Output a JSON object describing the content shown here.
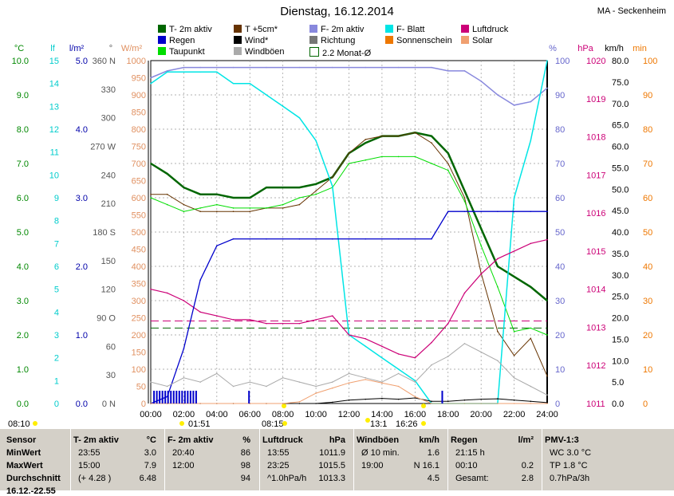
{
  "header": {
    "title": "Dienstag, 16.12.2014",
    "station": "MA - Seckenheim"
  },
  "legend": [
    {
      "label": "T- 2m aktiv",
      "color": "#006600"
    },
    {
      "label": "T +5cm*",
      "color": "#663300"
    },
    {
      "label": "F- 2m aktiv",
      "color": "#8888dd"
    },
    {
      "label": "F- Blatt",
      "color": "#00e5e5"
    },
    {
      "label": "Luftdruck",
      "color": "#cc0077"
    },
    {
      "label": "Regen",
      "color": "#0000cc"
    },
    {
      "label": "Wind*",
      "color": "#000000"
    },
    {
      "label": "Richtung",
      "color": "#777777"
    },
    {
      "label": "Sonnenschein",
      "color": "#ee7700"
    },
    {
      "label": "Solar",
      "color": "#f0a070"
    },
    {
      "label": "Taupunkt",
      "color": "#00dd00"
    },
    {
      "label": "Windböen",
      "color": "#aaaaaa"
    },
    {
      "label": "2.2 Monat-Ø",
      "color": "#006600"
    }
  ],
  "axes": {
    "temp": {
      "unit": "°C",
      "color": "#008800",
      "ticks": [
        "10.0",
        "9.0",
        "8.0",
        "7.0",
        "6.0",
        "5.0",
        "4.0",
        "3.0",
        "2.0",
        "1.0",
        "0.0"
      ]
    },
    "lf": {
      "unit": "lf",
      "color": "#00cccc",
      "ticks": [
        "15",
        "14",
        "13",
        "12",
        "11",
        "10",
        "9",
        "8",
        "7",
        "6",
        "5",
        "4",
        "3",
        "2",
        "1",
        "0"
      ]
    },
    "rain": {
      "unit": "l/m²",
      "color": "#0000aa",
      "ticks": [
        "5.0",
        "4.0",
        "3.0",
        "2.0",
        "1.0",
        "0.0"
      ]
    },
    "dir": {
      "unit": "°",
      "color": "#555555",
      "ticks": [
        "360 N",
        "330",
        "300",
        "270 W",
        "240",
        "210",
        "180 S",
        "150",
        "120",
        "90 O",
        "60",
        "30",
        "0 N"
      ]
    },
    "solar": {
      "unit": "W/m²",
      "color": "#e09060",
      "ticks": [
        "1000",
        "950",
        "900",
        "850",
        "800",
        "750",
        "700",
        "650",
        "600",
        "550",
        "500",
        "450",
        "400",
        "350",
        "300",
        "250",
        "200",
        "150",
        "100",
        "50",
        "0"
      ]
    },
    "hum": {
      "unit": "%",
      "color": "#6666cc",
      "ticks": [
        "100",
        "90",
        "80",
        "70",
        "60",
        "50",
        "40",
        "30",
        "20",
        "10",
        "0"
      ]
    },
    "press": {
      "unit": "hPa",
      "color": "#cc0077",
      "ticks": [
        "1020",
        "1019",
        "1018",
        "1017",
        "1016",
        "1015",
        "1014",
        "1013",
        "1012",
        "1011"
      ]
    },
    "wind": {
      "unit": "km/h",
      "color": "#000000",
      "ticks": [
        "80.0",
        "75.0",
        "70.0",
        "65.0",
        "60.0",
        "55.0",
        "50.0",
        "45.0",
        "40.0",
        "35.0",
        "30.0",
        "25.0",
        "20.0",
        "15.0",
        "10.0",
        "5.0",
        "0.0"
      ]
    },
    "min": {
      "unit": "min",
      "color": "#ee7700",
      "ticks": [
        "100",
        "90",
        "80",
        "70",
        "60",
        "50",
        "40",
        "30",
        "20",
        "10",
        "0"
      ]
    }
  },
  "xaxis": {
    "ticks": [
      "00:00",
      "02:00",
      "04:00",
      "06:00",
      "08:00",
      "10:00",
      "12:00",
      "14:00",
      "16:00",
      "18:00",
      "20:00",
      "22:00",
      "24:00"
    ],
    "markers": [
      "08:10",
      "01:51",
      "08:15",
      "13:1",
      "16:26"
    ]
  },
  "chart_data": {
    "type": "line",
    "title": "Dienstag, 16.12.2014",
    "x_hours": [
      0,
      1,
      2,
      3,
      4,
      5,
      6,
      7,
      8,
      9,
      10,
      11,
      12,
      13,
      14,
      15,
      16,
      17,
      18,
      19,
      20,
      21,
      22,
      23,
      24
    ],
    "series": [
      {
        "name": "T- 2m aktiv",
        "unit": "°C",
        "values": [
          7.0,
          6.7,
          6.3,
          6.1,
          6.1,
          6.0,
          6.0,
          6.3,
          6.3,
          6.3,
          6.4,
          6.6,
          7.3,
          7.6,
          7.8,
          7.8,
          7.9,
          7.8,
          7.3,
          6.2,
          5.1,
          4.0,
          3.7,
          3.4,
          3.0
        ]
      },
      {
        "name": "T +5cm*",
        "unit": "°C",
        "values": [
          6.1,
          6.1,
          5.8,
          5.6,
          5.6,
          5.6,
          5.6,
          5.7,
          5.7,
          5.8,
          6.2,
          6.6,
          7.3,
          7.7,
          7.8,
          7.8,
          7.9,
          7.6,
          7.0,
          6.0,
          3.8,
          2.1,
          1.4,
          1.9,
          0.8
        ]
      },
      {
        "name": "Taupunkt",
        "unit": "°C",
        "values": [
          6.0,
          5.8,
          5.6,
          5.7,
          5.8,
          5.7,
          5.7,
          5.7,
          5.8,
          6.0,
          6.1,
          6.3,
          7.0,
          7.1,
          7.2,
          7.2,
          7.2,
          7.0,
          6.8,
          5.9,
          4.6,
          3.4,
          2.1,
          2.2,
          2.0
        ]
      },
      {
        "name": "F- 2m aktiv",
        "unit": "%",
        "values": [
          95,
          97,
          98,
          98,
          98,
          98,
          98,
          98,
          98,
          98,
          98,
          98,
          98,
          98,
          98,
          98,
          98,
          98,
          97,
          97,
          94,
          90,
          87,
          88,
          92
        ]
      },
      {
        "name": "F- Blatt",
        "unit": "lf",
        "values": [
          14.0,
          14.5,
          14.5,
          14.5,
          14.5,
          14.0,
          14.0,
          13.5,
          13.0,
          12.5,
          11.5,
          9.5,
          3.0,
          2.5,
          2.0,
          1.5,
          1.0,
          0.0,
          0.0,
          0.0,
          0.0,
          0.0,
          9.0,
          11.5,
          15.0
        ]
      },
      {
        "name": "Luftdruck",
        "unit": "hPa",
        "values": [
          1014.0,
          1013.9,
          1013.7,
          1013.4,
          1013.3,
          1013.2,
          1013.2,
          1013.1,
          1013.1,
          1013.1,
          1013.2,
          1013.3,
          1012.8,
          1012.7,
          1012.5,
          1012.3,
          1012.2,
          1012.6,
          1013.1,
          1013.9,
          1014.4,
          1014.8,
          1015.0,
          1015.2,
          1015.3
        ]
      },
      {
        "name": "Regen",
        "unit": "l/m²",
        "values": [
          0.0,
          0.1,
          0.8,
          1.8,
          2.3,
          2.4,
          2.4,
          2.4,
          2.4,
          2.4,
          2.4,
          2.4,
          2.4,
          2.4,
          2.4,
          2.4,
          2.4,
          2.4,
          2.8,
          2.8,
          2.8,
          2.8,
          2.8,
          2.8,
          2.8
        ]
      },
      {
        "name": "Windböen",
        "unit": "km/h",
        "values": [
          5,
          4,
          6,
          5,
          7,
          4,
          5,
          4,
          6,
          5,
          4,
          5,
          7,
          6,
          5,
          7,
          5,
          9,
          11,
          14,
          12,
          10,
          6,
          4,
          2
        ]
      },
      {
        "name": "Wind*",
        "unit": "km/h",
        "values": [
          0,
          0,
          0,
          0,
          0,
          0,
          0,
          0,
          0,
          0,
          0,
          0.3,
          0.8,
          1.0,
          1.2,
          1.0,
          1.3,
          0.5,
          0.5,
          0.8,
          1.0,
          1.1,
          0.8,
          0.5,
          0.2
        ]
      },
      {
        "name": "Solar",
        "unit": "W/m²",
        "values": [
          0,
          0,
          0,
          0,
          0,
          0,
          0,
          0,
          0,
          5,
          30,
          45,
          60,
          70,
          60,
          50,
          20,
          0,
          0,
          0,
          0,
          0,
          0,
          0,
          0
        ]
      }
    ],
    "reference_lines": [
      {
        "name": "2.2 Monat-Ø",
        "unit": "°C",
        "value": 2.2
      },
      {
        "name": "Luftdruck Ø",
        "unit": "hPa",
        "value": 1013.0
      }
    ],
    "xlim": [
      0,
      24
    ],
    "ylim_temp": [
      0,
      10
    ],
    "ylim_hum": [
      0,
      100
    ],
    "ylim_press": [
      1011,
      1020
    ],
    "grid": true
  },
  "stats": {
    "rows": [
      "Sensor",
      "MinWert",
      "MaxWert",
      "Durchschnitt",
      "16.12.-22.55"
    ],
    "cols": [
      {
        "head": "T- 2m aktiv",
        "unit": "°C",
        "cells": [
          [
            "23:55",
            "3.0"
          ],
          [
            "15:00",
            "7.9"
          ],
          [
            "(+ 4.28 )",
            "6.48"
          ],
          [
            "",
            ""
          ]
        ]
      },
      {
        "head": "F- 2m aktiv",
        "unit": "%",
        "cells": [
          [
            "20:40",
            "86"
          ],
          [
            "12:00",
            "98"
          ],
          [
            "",
            "94"
          ],
          [
            "",
            ""
          ]
        ]
      },
      {
        "head": "Luftdruck",
        "unit": "hPa",
        "cells": [
          [
            "13:55",
            "1011.9"
          ],
          [
            "23:25",
            "1015.5"
          ],
          [
            "^1.0hPa/h",
            "1013.3"
          ],
          [
            "",
            ""
          ]
        ]
      },
      {
        "head": "Windböen",
        "unit": "km/h",
        "cells": [
          [
            "Ø 10 min.",
            "1.6"
          ],
          [
            "19:00",
            "N 16.1"
          ],
          [
            "",
            "4.5"
          ],
          [
            "",
            ""
          ]
        ]
      },
      {
        "head": "Regen",
        "unit": "l/m²",
        "cells": [
          [
            "21:15 h",
            ""
          ],
          [
            "00:10",
            "0.2"
          ],
          [
            "Gesamt:",
            "2.8"
          ],
          [
            "",
            ""
          ]
        ]
      },
      {
        "head": "PMV-1:3",
        "unit": "",
        "cells": [
          [
            "WC 3.0 °C",
            ""
          ],
          [
            "TP 1.8 °C",
            ""
          ],
          [
            "0.7hPa/3h",
            ""
          ],
          [
            "",
            ""
          ]
        ]
      }
    ]
  }
}
